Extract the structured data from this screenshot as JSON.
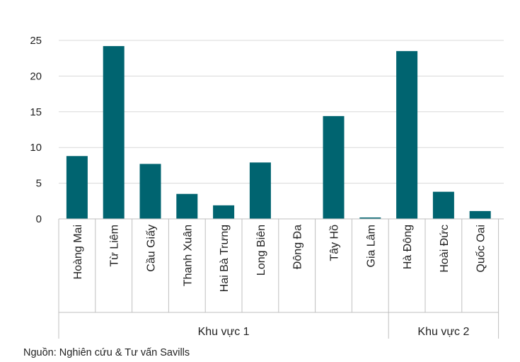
{
  "chart_data": {
    "type": "bar",
    "categories": [
      "Hoàng Mai",
      "Từ Liêm",
      "Cầu Giấy",
      "Thanh Xuân",
      "Hai Bà Trưng",
      "Long Biên",
      "Đông Đa",
      "Tây Hồ",
      "Gia Lâm",
      "Hà Đông",
      "Hoài Đức",
      "Quốc Oai"
    ],
    "values": [
      8.8,
      24.2,
      7.7,
      3.5,
      1.9,
      7.9,
      0,
      14.4,
      0.2,
      23.5,
      3.8,
      1.1
    ],
    "groups": [
      {
        "label": "Khu vực 1",
        "count": 9
      },
      {
        "label": "Khu vực 2",
        "count": 3
      }
    ],
    "ylim": [
      0,
      25
    ],
    "yticks": [
      "0",
      "5",
      "10",
      "15",
      "20",
      "25"
    ],
    "grid": true,
    "bar_color": "#006470",
    "grid_color": "#d9d9d9",
    "axis_color": "#bfbfbf"
  },
  "source": "Nguồn: Nghiên cứu & Tư vấn Savills"
}
